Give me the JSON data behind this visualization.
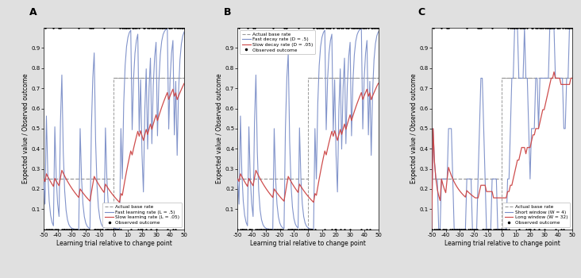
{
  "xlim": [
    -50,
    50
  ],
  "ylim_min": 0,
  "ylim_max": 1.0,
  "xlabel": "Learning trial relative to change point",
  "ylabel": "Expected value / Observed outcome",
  "base_rate_low": 0.25,
  "base_rate_high": 0.75,
  "change_point": 0,
  "figsize": [
    7.32,
    3.5
  ],
  "dpi": 100,
  "bg_color": "#e0e0e0",
  "panel_bg": "#ffffff",
  "blue_color": "#7b8ec8",
  "red_color": "#cc4444",
  "gray_dash": "#999999",
  "panels": [
    "A",
    "B",
    "C"
  ],
  "legend_A": [
    "Actual base rate",
    "Fast learning rate (L = .5)",
    "Slow learning rate (L = .05)",
    "Observed outcome"
  ],
  "legend_B": [
    "Actual base rate",
    "Fast decay rate (D = .5)",
    "Slow decay rate (D = .05)",
    "Observed outcome"
  ],
  "legend_C": [
    "Actual base rate",
    "Short window (W = 4)",
    "Long window (W = 32)",
    "Observed outcome"
  ],
  "legend_loc_A": "lower right",
  "legend_loc_B": "upper left",
  "legend_loc_C": "lower right",
  "yticks": [
    0.1,
    0.2,
    0.3,
    0.4,
    0.5,
    0.6,
    0.7,
    0.8,
    0.9
  ],
  "xticks": [
    -50,
    -40,
    -30,
    -20,
    -10,
    0,
    10,
    20,
    30,
    40,
    50
  ],
  "seed": 42
}
